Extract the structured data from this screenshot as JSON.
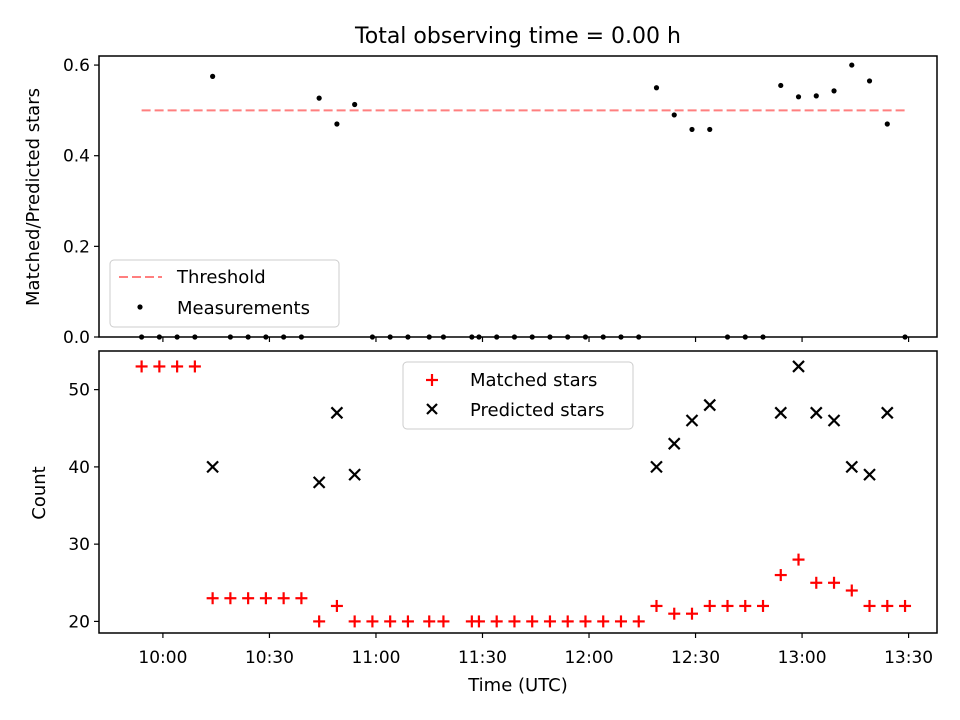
{
  "title": "Total observing time = 0.00 h",
  "colors": {
    "threshold": "#ff7f7f",
    "measurement": "#000000",
    "matched": "#ff0000",
    "predicted": "#000000"
  },
  "chart_data": [
    {
      "type": "scatter",
      "panel": "top",
      "title": "Total observing time = 0.00 h",
      "ylabel": "Matched/Predicted stars",
      "xlim": [
        "09:42",
        "13:38"
      ],
      "ylim": [
        0,
        0.62
      ],
      "yticks": [
        0.0,
        0.2,
        0.4,
        0.6
      ],
      "ytick_labels": [
        "0.0",
        "0.2",
        "0.4",
        "0.6"
      ],
      "grid": false,
      "legend": "lower-left",
      "threshold": {
        "name": "Threshold",
        "value": 0.5,
        "x_start": "09:54",
        "x_end": "13:29"
      },
      "series": [
        {
          "name": "Measurements",
          "x": [
            "09:54",
            "09:59",
            "10:04",
            "10:09",
            "10:14",
            "10:19",
            "10:24",
            "10:29",
            "10:34",
            "10:39",
            "10:44",
            "10:49",
            "10:54",
            "10:59",
            "11:04",
            "11:09",
            "11:15",
            "11:19",
            "11:27",
            "11:29",
            "11:34",
            "11:39",
            "11:44",
            "11:49",
            "11:54",
            "11:59",
            "12:04",
            "12:09",
            "12:14",
            "12:19",
            "12:24",
            "12:29",
            "12:34",
            "12:39",
            "12:44",
            "12:49",
            "12:54",
            "12:59",
            "13:04",
            "13:09",
            "13:14",
            "13:19",
            "13:24",
            "13:29"
          ],
          "y": [
            0,
            0,
            0,
            0,
            0.575,
            0,
            0,
            0,
            0,
            0,
            0.527,
            0.47,
            0.513,
            0,
            0,
            0,
            0,
            0,
            0,
            0,
            0,
            0,
            0,
            0,
            0,
            0,
            0,
            0,
            0,
            0.55,
            0.49,
            0.458,
            0.458,
            0,
            0,
            0,
            0.555,
            0.53,
            0.532,
            0.543,
            0.6,
            0.565,
            0.47,
            0
          ]
        }
      ]
    },
    {
      "type": "scatter",
      "panel": "bottom",
      "xlabel": "Time (UTC)",
      "ylabel": "Count",
      "xlim": [
        "09:42",
        "13:38"
      ],
      "ylim": [
        18.5,
        55
      ],
      "xticks": [
        "10:00",
        "10:30",
        "11:00",
        "11:30",
        "12:00",
        "12:30",
        "13:00",
        "13:30"
      ],
      "yticks": [
        20,
        30,
        40,
        50
      ],
      "ytick_labels": [
        "20",
        "30",
        "40",
        "50"
      ],
      "grid": false,
      "legend": "upper-center",
      "series": [
        {
          "name": "Matched stars",
          "marker": "plus",
          "x": [
            "09:54",
            "09:59",
            "10:04",
            "10:09",
            "10:14",
            "10:19",
            "10:24",
            "10:29",
            "10:34",
            "10:39",
            "10:44",
            "10:49",
            "10:54",
            "10:59",
            "11:04",
            "11:09",
            "11:15",
            "11:19",
            "11:27",
            "11:29",
            "11:34",
            "11:39",
            "11:44",
            "11:49",
            "11:54",
            "11:59",
            "12:04",
            "12:09",
            "12:14",
            "12:19",
            "12:24",
            "12:29",
            "12:34",
            "12:39",
            "12:44",
            "12:49",
            "12:54",
            "12:59",
            "13:04",
            "13:09",
            "13:14",
            "13:19",
            "13:24",
            "13:29"
          ],
          "y": [
            53,
            53,
            53,
            53,
            23,
            23,
            23,
            23,
            23,
            23,
            20,
            22,
            20,
            20,
            20,
            20,
            20,
            20,
            20,
            20,
            20,
            20,
            20,
            20,
            20,
            20,
            20,
            20,
            20,
            22,
            21,
            21,
            22,
            22,
            22,
            22,
            26,
            28,
            25,
            25,
            24,
            22,
            22,
            22
          ]
        },
        {
          "name": "Predicted stars",
          "marker": "x",
          "x": [
            "10:14",
            "10:44",
            "10:49",
            "10:54",
            "12:19",
            "12:24",
            "12:29",
            "12:34",
            "12:54",
            "12:59",
            "13:04",
            "13:09",
            "13:14",
            "13:19",
            "13:24"
          ],
          "y": [
            40,
            38,
            47,
            39,
            40,
            43,
            46,
            48,
            47,
            53,
            47,
            46,
            40,
            39,
            47
          ]
        }
      ]
    }
  ]
}
